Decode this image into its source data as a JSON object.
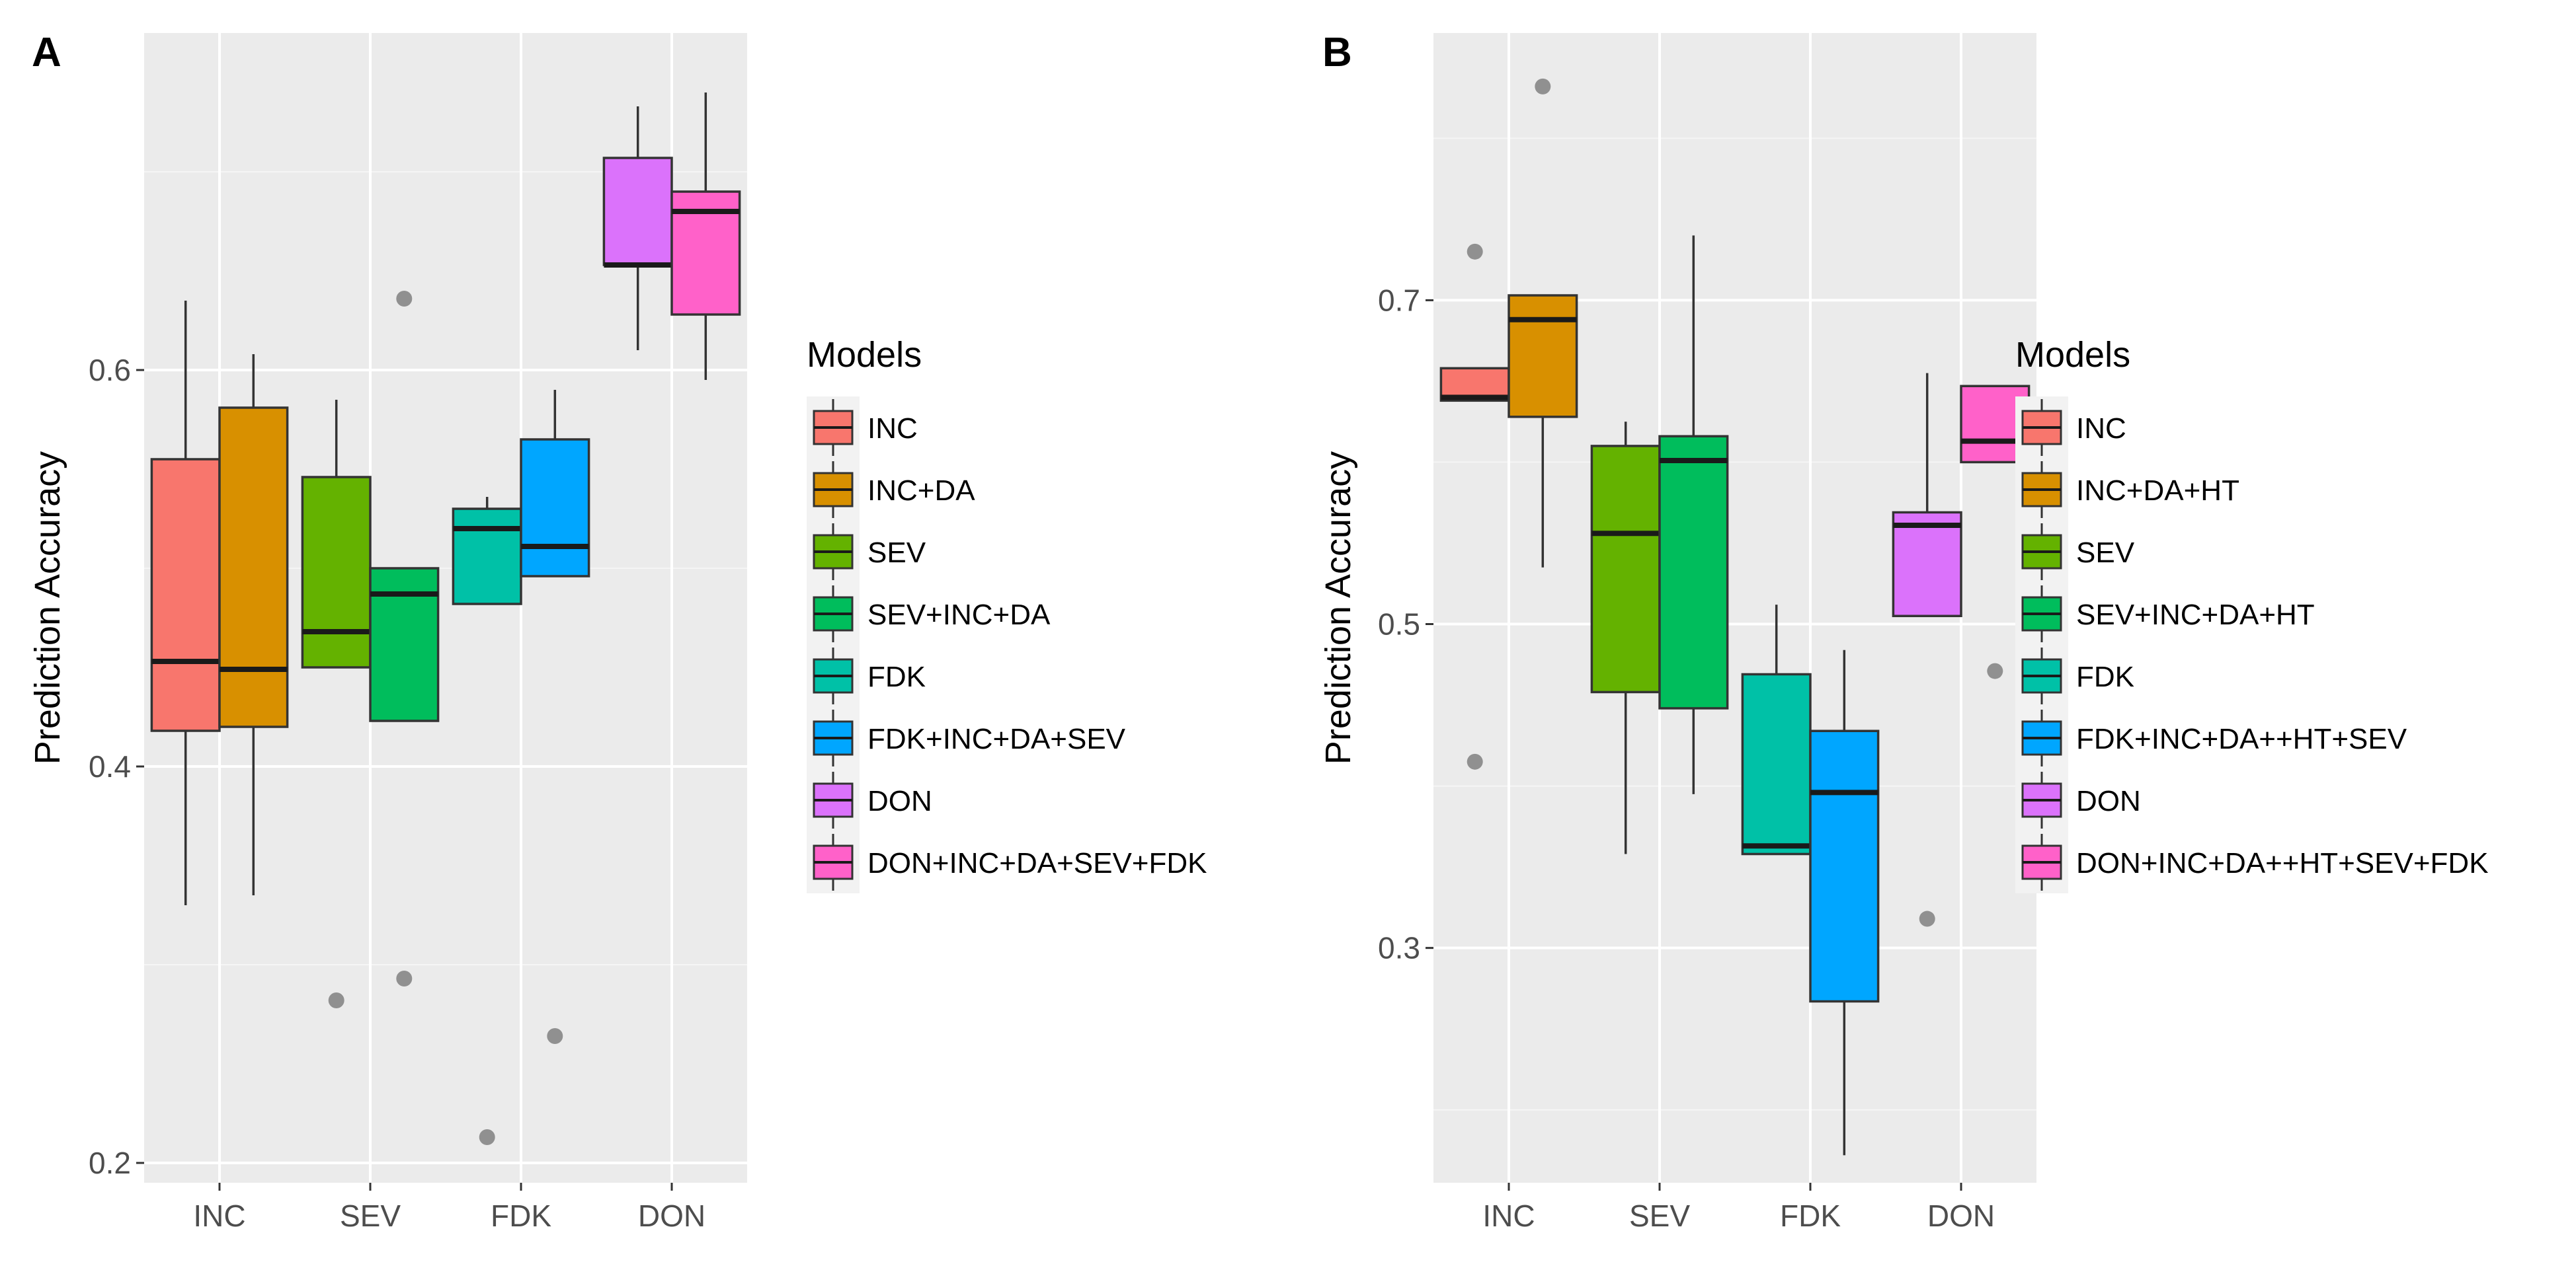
{
  "chart_data": [
    {
      "type": "boxplot",
      "panel_label": "A",
      "ylabel": "Prediction Accuracy",
      "ylim": [
        0.19,
        0.77
      ],
      "yticks": [
        0.2,
        0.4,
        0.6
      ],
      "ytick_labels": [
        "0.2",
        "0.4",
        "0.6"
      ],
      "minor_yticks": [
        0.3,
        0.5,
        0.7
      ],
      "categories": [
        "INC",
        "SEV",
        "FDK",
        "DON"
      ],
      "legend_title": "Models",
      "series": [
        {
          "name": "INC",
          "color": "#F8766D",
          "group": 0,
          "slot": 0,
          "whislo": 0.33,
          "q1": 0.418,
          "med": 0.453,
          "q3": 0.555,
          "whishi": 0.635,
          "outliers": []
        },
        {
          "name": "INC+DA",
          "color": "#D89000",
          "group": 0,
          "slot": 1,
          "whislo": 0.335,
          "q1": 0.42,
          "med": 0.449,
          "q3": 0.581,
          "whishi": 0.608,
          "outliers": []
        },
        {
          "name": "SEV",
          "color": "#64B200",
          "group": 1,
          "slot": 0,
          "whislo": 0.45,
          "q1": 0.45,
          "med": 0.468,
          "q3": 0.546,
          "whishi": 0.585,
          "outliers": [
            0.282
          ]
        },
        {
          "name": "SEV+INC+DA",
          "color": "#00BD5C",
          "group": 1,
          "slot": 1,
          "whislo": 0.423,
          "q1": 0.423,
          "med": 0.487,
          "q3": 0.5,
          "whishi": 0.5,
          "outliers": [
            0.293,
            0.636
          ]
        },
        {
          "name": "FDK",
          "color": "#00C1A7",
          "group": 2,
          "slot": 0,
          "whislo": 0.482,
          "q1": 0.482,
          "med": 0.52,
          "q3": 0.53,
          "whishi": 0.536,
          "outliers": [
            0.213
          ]
        },
        {
          "name": "FDK+INC+DA+SEV",
          "color": "#00A6FF",
          "group": 2,
          "slot": 1,
          "whislo": 0.496,
          "q1": 0.496,
          "med": 0.511,
          "q3": 0.565,
          "whishi": 0.59,
          "outliers": [
            0.264
          ]
        },
        {
          "name": "DON",
          "color": "#DB72FB",
          "group": 3,
          "slot": 0,
          "whislo": 0.61,
          "q1": 0.653,
          "med": 0.653,
          "q3": 0.707,
          "whishi": 0.733,
          "outliers": []
        },
        {
          "name": "DON+INC+DA+SEV+FDK",
          "color": "#FF61C9",
          "group": 3,
          "slot": 1,
          "whislo": 0.595,
          "q1": 0.628,
          "med": 0.68,
          "q3": 0.69,
          "whishi": 0.74,
          "outliers": []
        }
      ]
    },
    {
      "type": "boxplot",
      "panel_label": "B",
      "ylabel": "Prediction Accuracy",
      "ylim": [
        0.155,
        0.865
      ],
      "yticks": [
        0.3,
        0.5,
        0.7
      ],
      "ytick_labels": [
        "0.3",
        "0.5",
        "0.7"
      ],
      "minor_yticks": [
        0.2,
        0.4,
        0.6,
        0.8
      ],
      "categories": [
        "INC",
        "SEV",
        "FDK",
        "DON"
      ],
      "legend_title": "Models",
      "series": [
        {
          "name": "INC",
          "color": "#F8766D",
          "group": 0,
          "slot": 0,
          "whislo": 0.638,
          "q1": 0.638,
          "med": 0.64,
          "q3": 0.658,
          "whishi": 0.658,
          "outliers": [
            0.73,
            0.415
          ]
        },
        {
          "name": "INC+DA+HT",
          "color": "#D89000",
          "group": 0,
          "slot": 1,
          "whislo": 0.535,
          "q1": 0.628,
          "med": 0.688,
          "q3": 0.703,
          "whishi": 0.703,
          "outliers": [
            0.832
          ]
        },
        {
          "name": "SEV",
          "color": "#64B200",
          "group": 1,
          "slot": 0,
          "whislo": 0.358,
          "q1": 0.458,
          "med": 0.556,
          "q3": 0.61,
          "whishi": 0.625,
          "outliers": []
        },
        {
          "name": "SEV+INC+DA+HT",
          "color": "#00BD5C",
          "group": 1,
          "slot": 1,
          "whislo": 0.395,
          "q1": 0.448,
          "med": 0.601,
          "q3": 0.616,
          "whishi": 0.74,
          "outliers": []
        },
        {
          "name": "FDK",
          "color": "#00C1A7",
          "group": 2,
          "slot": 0,
          "whislo": 0.358,
          "q1": 0.358,
          "med": 0.363,
          "q3": 0.469,
          "whishi": 0.512,
          "outliers": []
        },
        {
          "name": "FDK+INC+DA++HT+SEV",
          "color": "#00A6FF",
          "group": 2,
          "slot": 1,
          "whislo": 0.172,
          "q1": 0.267,
          "med": 0.396,
          "q3": 0.434,
          "whishi": 0.484,
          "outliers": []
        },
        {
          "name": "DON",
          "color": "#DB72FB",
          "group": 3,
          "slot": 0,
          "whislo": 0.505,
          "q1": 0.505,
          "med": 0.561,
          "q3": 0.569,
          "whishi": 0.655,
          "outliers": [
            0.318
          ]
        },
        {
          "name": "DON+INC+DA++HT+SEV+FDK",
          "color": "#FF61C9",
          "group": 3,
          "slot": 1,
          "whislo": 0.6,
          "q1": 0.6,
          "med": 0.613,
          "q3": 0.647,
          "whishi": 0.647,
          "outliers": [
            0.471
          ]
        }
      ]
    }
  ]
}
